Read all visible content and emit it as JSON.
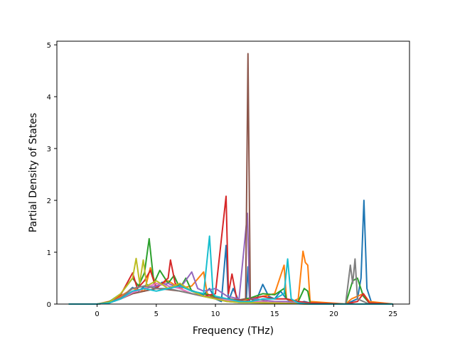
{
  "chart_data": {
    "type": "line",
    "title": "",
    "xlabel": "Frequency (THz)",
    "ylabel": "Partial Density of States",
    "xlim": [
      -3.4,
      26.4
    ],
    "ylim": [
      0,
      5.07
    ],
    "xticks": [
      0,
      5,
      10,
      15,
      20,
      25
    ],
    "yticks": [
      0,
      1,
      2,
      3,
      4,
      5
    ],
    "grid": false,
    "legend": "none",
    "series": [
      {
        "color": "#1f77b4",
        "points": [
          [
            -2.4,
            0
          ],
          [
            0,
            0
          ],
          [
            0.8,
            0.02
          ],
          [
            1.5,
            0.1
          ],
          [
            2.5,
            0.22
          ],
          [
            3,
            0.32
          ],
          [
            3.5,
            0.25
          ],
          [
            4.2,
            0.38
          ],
          [
            4.8,
            0.3
          ],
          [
            5.5,
            0.42
          ],
          [
            6.2,
            0.32
          ],
          [
            7,
            0.38
          ],
          [
            8,
            0.26
          ],
          [
            9,
            0.18
          ],
          [
            9.5,
            0.3
          ],
          [
            10,
            0.1
          ],
          [
            10.5,
            0.05
          ],
          [
            10.9,
            1.13
          ],
          [
            11.1,
            0.05
          ],
          [
            11.5,
            0.3
          ],
          [
            12,
            0.05
          ],
          [
            12.6,
            0.03
          ],
          [
            12.75,
            0.72
          ],
          [
            12.9,
            0.03
          ],
          [
            13.5,
            0.1
          ],
          [
            14,
            0.38
          ],
          [
            14.5,
            0.15
          ],
          [
            15,
            0.1
          ],
          [
            15.5,
            0.25
          ],
          [
            16,
            0.1
          ],
          [
            16.5,
            0.02
          ],
          [
            17,
            0.02
          ],
          [
            17.5,
            0.05
          ],
          [
            18,
            0.02
          ],
          [
            21,
            0
          ],
          [
            21.5,
            0.05
          ],
          [
            22,
            0.1
          ],
          [
            22.3,
            0.5
          ],
          [
            22.55,
            2.0
          ],
          [
            22.8,
            0.3
          ],
          [
            23.2,
            0.02
          ],
          [
            25,
            0
          ]
        ]
      },
      {
        "color": "#ff7f0e",
        "points": [
          [
            -2.4,
            0
          ],
          [
            0,
            0
          ],
          [
            1,
            0.05
          ],
          [
            2,
            0.15
          ],
          [
            3,
            0.3
          ],
          [
            4,
            0.25
          ],
          [
            4.5,
            0.7
          ],
          [
            5,
            0.35
          ],
          [
            6,
            0.45
          ],
          [
            7,
            0.3
          ],
          [
            8,
            0.35
          ],
          [
            9,
            0.62
          ],
          [
            9.3,
            0.2
          ],
          [
            10,
            0.1
          ],
          [
            11,
            0.05
          ],
          [
            12,
            0.05
          ],
          [
            13,
            0.1
          ],
          [
            14,
            0.15
          ],
          [
            15,
            0.2
          ],
          [
            15.8,
            0.75
          ],
          [
            16,
            0.1
          ],
          [
            16.5,
            0.05
          ],
          [
            17,
            0.1
          ],
          [
            17.4,
            1.02
          ],
          [
            17.6,
            0.8
          ],
          [
            17.8,
            0.75
          ],
          [
            18,
            0.05
          ],
          [
            21,
            0
          ],
          [
            21.5,
            0.1
          ],
          [
            22,
            0.15
          ],
          [
            22.5,
            0.2
          ],
          [
            23,
            0.05
          ],
          [
            25,
            0
          ]
        ]
      },
      {
        "color": "#2ca02c",
        "points": [
          [
            -2.4,
            0
          ],
          [
            0,
            0
          ],
          [
            1,
            0.04
          ],
          [
            2,
            0.2
          ],
          [
            3,
            0.5
          ],
          [
            3.5,
            0.35
          ],
          [
            4,
            0.6
          ],
          [
            4.4,
            1.26
          ],
          [
            4.8,
            0.4
          ],
          [
            5.3,
            0.65
          ],
          [
            6,
            0.4
          ],
          [
            6.5,
            0.55
          ],
          [
            7,
            0.3
          ],
          [
            7.5,
            0.5
          ],
          [
            8,
            0.25
          ],
          [
            9,
            0.2
          ],
          [
            10,
            0.15
          ],
          [
            11,
            0.1
          ],
          [
            12,
            0.08
          ],
          [
            13,
            0.12
          ],
          [
            14,
            0.2
          ],
          [
            15,
            0.18
          ],
          [
            15.8,
            0.3
          ],
          [
            16,
            0.1
          ],
          [
            17,
            0.05
          ],
          [
            17.5,
            0.3
          ],
          [
            17.8,
            0.25
          ],
          [
            18,
            0.02
          ],
          [
            21,
            0
          ],
          [
            21.6,
            0.45
          ],
          [
            22,
            0.5
          ],
          [
            22.5,
            0.15
          ],
          [
            23,
            0.02
          ],
          [
            25,
            0
          ]
        ]
      },
      {
        "color": "#d62728",
        "points": [
          [
            -2.4,
            0
          ],
          [
            0,
            0
          ],
          [
            1,
            0.03
          ],
          [
            2,
            0.18
          ],
          [
            3,
            0.6
          ],
          [
            3.4,
            0.3
          ],
          [
            4,
            0.45
          ],
          [
            4.5,
            0.65
          ],
          [
            5,
            0.3
          ],
          [
            6,
            0.5
          ],
          [
            6.2,
            0.85
          ],
          [
            6.6,
            0.4
          ],
          [
            7,
            0.3
          ],
          [
            8,
            0.2
          ],
          [
            9,
            0.15
          ],
          [
            10,
            0.2
          ],
          [
            10.9,
            2.08
          ],
          [
            11.1,
            0.2
          ],
          [
            11.4,
            0.58
          ],
          [
            11.8,
            0.1
          ],
          [
            12.5,
            0.05
          ],
          [
            13,
            0.1
          ],
          [
            14,
            0.15
          ],
          [
            15,
            0.1
          ],
          [
            16,
            0.1
          ],
          [
            17,
            0.05
          ],
          [
            18,
            0.02
          ],
          [
            21,
            0
          ],
          [
            22,
            0.05
          ],
          [
            22.5,
            0.2
          ],
          [
            23,
            0.02
          ],
          [
            25,
            0
          ]
        ]
      },
      {
        "color": "#9467bd",
        "points": [
          [
            -2.4,
            0
          ],
          [
            0,
            0
          ],
          [
            1,
            0.03
          ],
          [
            2,
            0.12
          ],
          [
            3,
            0.25
          ],
          [
            4,
            0.3
          ],
          [
            5,
            0.35
          ],
          [
            6,
            0.4
          ],
          [
            7,
            0.3
          ],
          [
            8,
            0.62
          ],
          [
            8.5,
            0.3
          ],
          [
            9,
            0.25
          ],
          [
            10,
            0.3
          ],
          [
            11,
            0.15
          ],
          [
            12,
            0.1
          ],
          [
            12.7,
            1.75
          ],
          [
            12.9,
            0.1
          ],
          [
            13.5,
            0.1
          ],
          [
            14,
            0.08
          ],
          [
            15,
            0.05
          ],
          [
            16,
            0.05
          ],
          [
            17,
            0.02
          ],
          [
            18,
            0
          ],
          [
            25,
            0
          ]
        ]
      },
      {
        "color": "#8c564b",
        "points": [
          [
            -2.4,
            0
          ],
          [
            0,
            0
          ],
          [
            1,
            0.02
          ],
          [
            2,
            0.1
          ],
          [
            3,
            0.2
          ],
          [
            4,
            0.25
          ],
          [
            5,
            0.3
          ],
          [
            6,
            0.28
          ],
          [
            7,
            0.25
          ],
          [
            8,
            0.2
          ],
          [
            9,
            0.15
          ],
          [
            10,
            0.12
          ],
          [
            11,
            0.1
          ],
          [
            12,
            0.08
          ],
          [
            12.55,
            0.1
          ],
          [
            12.75,
            4.83
          ],
          [
            12.95,
            0.1
          ],
          [
            13.5,
            0.05
          ],
          [
            14,
            0.05
          ],
          [
            15,
            0.02
          ],
          [
            16,
            0.02
          ],
          [
            18,
            0
          ],
          [
            25,
            0
          ]
        ]
      },
      {
        "color": "#e377c2",
        "points": [
          [
            -2.4,
            0
          ],
          [
            0,
            0
          ],
          [
            1,
            0.02
          ],
          [
            2,
            0.1
          ],
          [
            3,
            0.22
          ],
          [
            4,
            0.3
          ],
          [
            5,
            0.4
          ],
          [
            6,
            0.35
          ],
          [
            7,
            0.3
          ],
          [
            8,
            0.2
          ],
          [
            9,
            0.15
          ],
          [
            10,
            0.1
          ],
          [
            11,
            0.08
          ],
          [
            12,
            0.05
          ],
          [
            13,
            0.05
          ],
          [
            14,
            0.04
          ],
          [
            15,
            0.03
          ],
          [
            16,
            0.02
          ],
          [
            18,
            0
          ],
          [
            25,
            0
          ]
        ]
      },
      {
        "color": "#7f7f7f",
        "points": [
          [
            -2.4,
            0
          ],
          [
            0,
            0
          ],
          [
            1,
            0.02
          ],
          [
            2,
            0.12
          ],
          [
            3,
            0.3
          ],
          [
            4,
            0.35
          ],
          [
            5,
            0.3
          ],
          [
            6,
            0.3
          ],
          [
            7,
            0.25
          ],
          [
            8,
            0.2
          ],
          [
            9,
            0.15
          ],
          [
            10,
            0.1
          ],
          [
            11,
            0.05
          ],
          [
            12,
            0.03
          ],
          [
            15,
            0.02
          ],
          [
            18,
            0
          ],
          [
            21,
            0
          ],
          [
            21.4,
            0.75
          ],
          [
            21.6,
            0.4
          ],
          [
            21.8,
            0.87
          ],
          [
            22,
            0.1
          ],
          [
            22.5,
            0.05
          ],
          [
            23,
            0
          ],
          [
            25,
            0
          ]
        ]
      },
      {
        "color": "#bcbd22",
        "points": [
          [
            -2.4,
            0
          ],
          [
            0,
            0
          ],
          [
            1,
            0.03
          ],
          [
            2,
            0.2
          ],
          [
            3,
            0.5
          ],
          [
            3.3,
            0.88
          ],
          [
            3.6,
            0.4
          ],
          [
            3.9,
            0.85
          ],
          [
            4.2,
            0.35
          ],
          [
            5,
            0.45
          ],
          [
            6,
            0.3
          ],
          [
            7,
            0.4
          ],
          [
            8,
            0.25
          ],
          [
            9,
            0.15
          ],
          [
            10,
            0.1
          ],
          [
            11,
            0.05
          ],
          [
            12,
            0.03
          ],
          [
            15,
            0.02
          ],
          [
            18,
            0
          ],
          [
            25,
            0
          ]
        ]
      },
      {
        "color": "#17becf",
        "points": [
          [
            -2.4,
            0
          ],
          [
            0,
            0
          ],
          [
            1,
            0.02
          ],
          [
            2,
            0.1
          ],
          [
            3,
            0.25
          ],
          [
            4,
            0.3
          ],
          [
            5,
            0.25
          ],
          [
            6,
            0.3
          ],
          [
            7,
            0.35
          ],
          [
            8,
            0.25
          ],
          [
            9,
            0.2
          ],
          [
            9.5,
            1.31
          ],
          [
            9.8,
            0.2
          ],
          [
            10,
            0.15
          ],
          [
            11,
            0.1
          ],
          [
            12,
            0.05
          ],
          [
            13,
            0.05
          ],
          [
            14,
            0.1
          ],
          [
            15,
            0.1
          ],
          [
            15.8,
            0.2
          ],
          [
            16.1,
            0.87
          ],
          [
            16.4,
            0.1
          ],
          [
            17,
            0.02
          ],
          [
            18,
            0
          ],
          [
            25,
            0
          ]
        ]
      }
    ]
  }
}
